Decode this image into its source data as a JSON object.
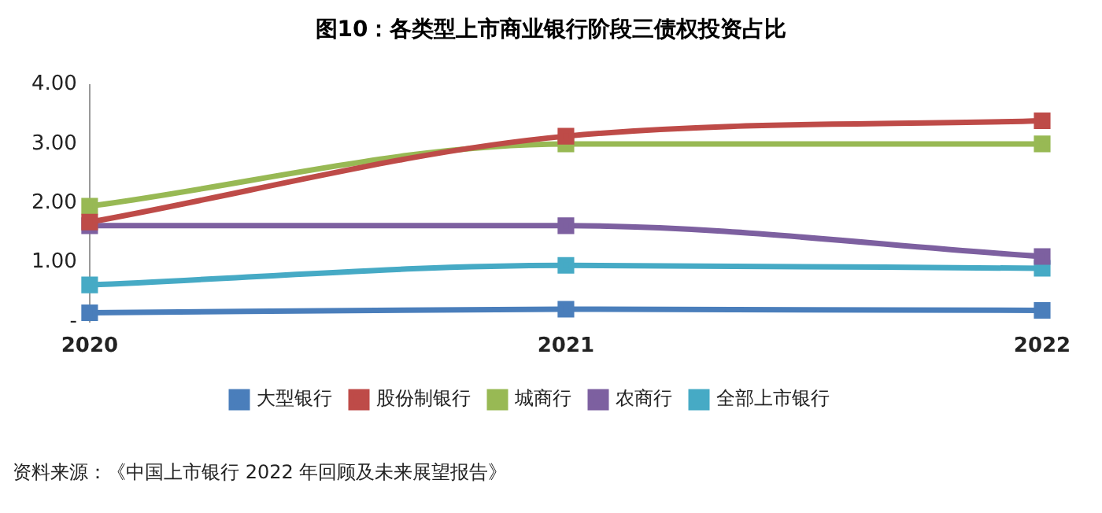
{
  "chart_data": {
    "type": "line",
    "title": "图10：各类型上市商业银行阶段三债权投资占比",
    "categories": [
      "2020",
      "2021",
      "2022"
    ],
    "series": [
      {
        "name": "大型银行",
        "color": "#4a7ebb",
        "values": [
          0.15,
          0.21,
          0.19
        ]
      },
      {
        "name": "股份制银行",
        "color": "#be4b48",
        "values": [
          1.68,
          3.13,
          3.39
        ]
      },
      {
        "name": "城商行",
        "color": "#98b954",
        "values": [
          1.95,
          3.0,
          3.0
        ]
      },
      {
        "name": "农商行",
        "color": "#7d60a0",
        "values": [
          1.62,
          1.62,
          1.1
        ]
      },
      {
        "name": "全部上市银行",
        "color": "#46aac5",
        "values": [
          0.62,
          0.95,
          0.9
        ]
      }
    ],
    "ylim": [
      0,
      4
    ],
    "yticks": [
      {
        "value": 0,
        "label": "-"
      },
      {
        "value": 1,
        "label": "1.00"
      },
      {
        "value": 2,
        "label": "2.00"
      },
      {
        "value": 3,
        "label": "3.00"
      },
      {
        "value": 4,
        "label": "4.00"
      }
    ],
    "grid": false,
    "legend": "bottom",
    "marker": "square",
    "line_style": "solid",
    "annotations": [
      "资料来源：《中国上市银行 2022 年回顾及未来展望报告》"
    ]
  }
}
